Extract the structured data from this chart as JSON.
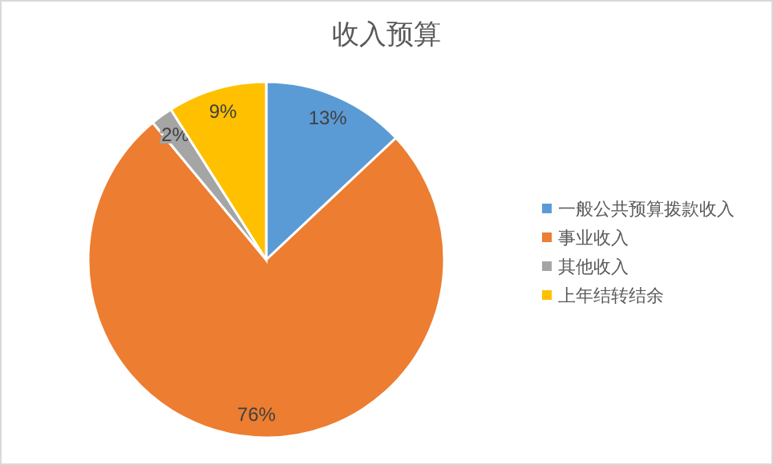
{
  "chart_data": {
    "type": "pie",
    "title": "收入预算",
    "categories": [
      "一般公共预算拨款收入",
      "事业收入",
      "其他收入",
      "上年结转结余"
    ],
    "values": [
      13,
      76,
      2,
      9
    ],
    "colors": [
      "#5b9bd5",
      "#ed7d31",
      "#a5a5a5",
      "#ffc000"
    ],
    "value_labels": [
      "13%",
      "76%",
      "2%",
      "9%"
    ],
    "legend": "right"
  }
}
